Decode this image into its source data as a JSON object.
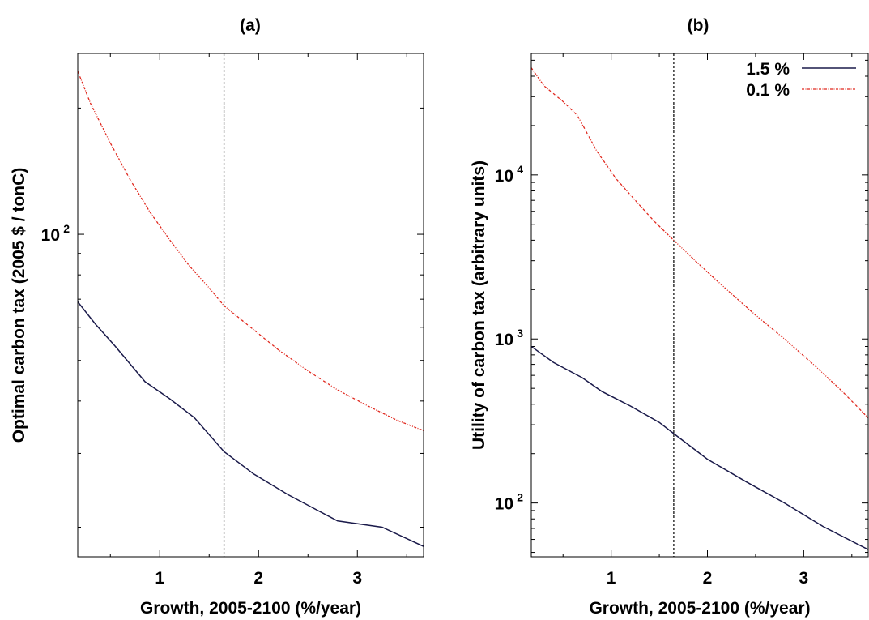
{
  "chart_data": [
    {
      "type": "line",
      "title": "(a)",
      "xlabel": "Growth, 2005-2100 (%/year)",
      "ylabel": "Optimal carbon tax (2005 $ / tonC)",
      "xlim": [
        0.17,
        3.67
      ],
      "ylim": [
        17,
        270
      ],
      "yscale": "log",
      "grid": false,
      "x_ticks": [
        "1",
        "2",
        "3"
      ],
      "y_ticks": [
        {
          "base": "10",
          "exp": "2"
        }
      ],
      "vline": 1.65,
      "series": [
        {
          "name": "1.5 %",
          "color": "#1a1a4a",
          "dash": "solid",
          "x": [
            0.17,
            0.35,
            0.55,
            0.85,
            1.1,
            1.35,
            1.65,
            1.95,
            2.3,
            2.8,
            3.25,
            3.67
          ],
          "y": [
            69,
            61,
            54,
            44.5,
            40.5,
            36.5,
            30.3,
            26.8,
            23.9,
            20.7,
            20.0,
            18.0
          ]
        },
        {
          "name": "0.1 %",
          "color": "#e0281e",
          "dash": "dotted",
          "x": [
            0.17,
            0.3,
            0.5,
            0.7,
            0.9,
            1.1,
            1.3,
            1.5,
            1.65,
            1.9,
            2.2,
            2.5,
            2.8,
            3.1,
            3.4,
            3.67
          ],
          "y": [
            245,
            205,
            165,
            135,
            113,
            97,
            84,
            74.5,
            67.5,
            60.5,
            53,
            47.2,
            42.5,
            39,
            36,
            34
          ]
        }
      ]
    },
    {
      "type": "line",
      "title": "(b)",
      "xlabel": "Growth, 2005-2100 (%/year)",
      "ylabel": "Utility of carbon tax (arbitrary units)",
      "xlim": [
        0.17,
        3.67
      ],
      "ylim": [
        47,
        55000
      ],
      "yscale": "log",
      "grid": false,
      "x_ticks": [
        "1",
        "2",
        "3"
      ],
      "y_ticks": [
        {
          "base": "10",
          "exp": "2"
        },
        {
          "base": "10",
          "exp": "3"
        },
        {
          "base": "10",
          "exp": "4"
        }
      ],
      "vline": 1.65,
      "legend": "top-right",
      "series": [
        {
          "name": "1.5 %",
          "color": "#1a1a4a",
          "dash": "solid",
          "x": [
            0.17,
            0.4,
            0.7,
            0.9,
            1.2,
            1.5,
            1.65,
            2.0,
            2.4,
            2.8,
            3.2,
            3.67
          ],
          "y": [
            900,
            720,
            580,
            480,
            390,
            310,
            265,
            185,
            135,
            100,
            72,
            52
          ]
        },
        {
          "name": "0.1 %",
          "color": "#e0281e",
          "dash": "dotted",
          "x": [
            0.17,
            0.3,
            0.5,
            0.65,
            0.85,
            1.05,
            1.25,
            1.45,
            1.65,
            1.9,
            2.2,
            2.5,
            2.8,
            3.1,
            3.4,
            3.67
          ],
          "y": [
            45000,
            35000,
            28000,
            23000,
            14000,
            9500,
            7000,
            5200,
            4000,
            2900,
            2000,
            1400,
            1000,
            700,
            480,
            330
          ]
        }
      ]
    }
  ]
}
